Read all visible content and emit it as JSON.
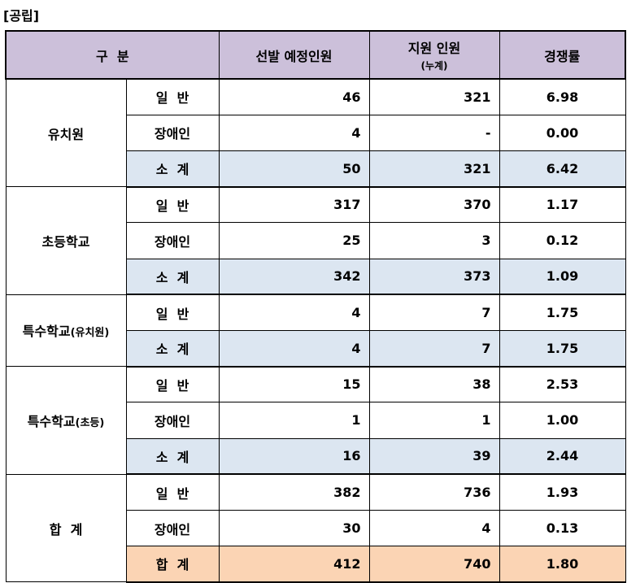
{
  "caption": "[공립]",
  "header": {
    "category": "구  분",
    "planned": "선발 예정인원",
    "applicants": "지원 인원",
    "applicants_sub": "(누계)",
    "ratio": "경쟁률"
  },
  "groups": [
    {
      "name": "유치원",
      "name_small": "",
      "rows": [
        {
          "type": "일  반",
          "planned": "46",
          "applicants": "321",
          "ratio": "6.98",
          "style": "normal"
        },
        {
          "type": "장애인",
          "planned": "4",
          "applicants": "-",
          "ratio": "0.00",
          "style": "normal"
        },
        {
          "type": "소  계",
          "planned": "50",
          "applicants": "321",
          "ratio": "6.42",
          "style": "subtotal"
        }
      ]
    },
    {
      "name": "초등학교",
      "name_small": "",
      "rows": [
        {
          "type": "일  반",
          "planned": "317",
          "applicants": "370",
          "ratio": "1.17",
          "style": "normal"
        },
        {
          "type": "장애인",
          "planned": "25",
          "applicants": "3",
          "ratio": "0.12",
          "style": "normal"
        },
        {
          "type": "소  계",
          "planned": "342",
          "applicants": "373",
          "ratio": "1.09",
          "style": "subtotal"
        }
      ]
    },
    {
      "name": "특수학교",
      "name_small": "(유치원)",
      "rows": [
        {
          "type": "일  반",
          "planned": "4",
          "applicants": "7",
          "ratio": "1.75",
          "style": "normal"
        },
        {
          "type": "소  계",
          "planned": "4",
          "applicants": "7",
          "ratio": "1.75",
          "style": "subtotal"
        }
      ]
    },
    {
      "name": "특수학교",
      "name_small": "(초등)",
      "rows": [
        {
          "type": "일  반",
          "planned": "15",
          "applicants": "38",
          "ratio": "2.53",
          "style": "normal"
        },
        {
          "type": "장애인",
          "planned": "1",
          "applicants": "1",
          "ratio": "1.00",
          "style": "normal"
        },
        {
          "type": "소  계",
          "planned": "16",
          "applicants": "39",
          "ratio": "2.44",
          "style": "subtotal"
        }
      ]
    },
    {
      "name": "합  계",
      "name_small": "",
      "rows": [
        {
          "type": "일  반",
          "planned": "382",
          "applicants": "736",
          "ratio": "1.93",
          "style": "normal"
        },
        {
          "type": "장애인",
          "planned": "30",
          "applicants": "4",
          "ratio": "0.13",
          "style": "normal"
        },
        {
          "type": "합  계",
          "planned": "412",
          "applicants": "740",
          "ratio": "1.80",
          "style": "total"
        }
      ]
    }
  ],
  "colors": {
    "header_bg": "#ccc0da",
    "subtotal_bg": "#dce6f1",
    "total_bg": "#fbd4b4"
  }
}
